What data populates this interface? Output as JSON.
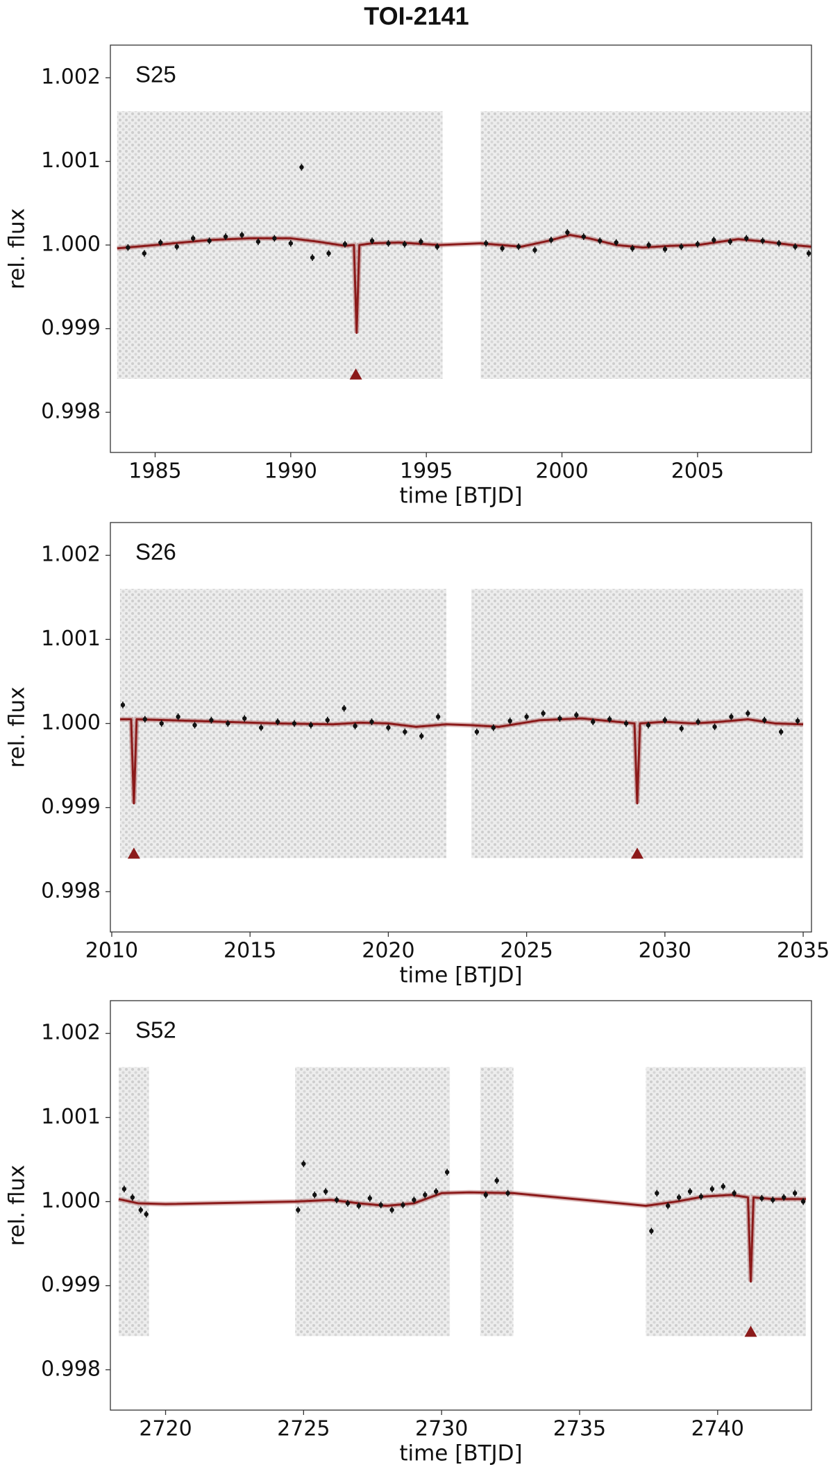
{
  "title": "TOI-2141",
  "chart_data": [
    {
      "type": "scatter",
      "label": "S25",
      "xlabel": "time [BTJD]",
      "ylabel": "rel. flux",
      "xlim": [
        1983.35,
        2009.2
      ],
      "xticks": [
        1985,
        1990,
        1995,
        2000,
        2005
      ],
      "ylim": [
        0.99752,
        1.00239
      ],
      "yticks": [
        0.998,
        0.999,
        {
          "value": 1,
          "label": "1.000"
        },
        1.001,
        1.002
      ],
      "raw_segments": [
        [
          1983.6,
          1995.6
        ],
        [
          1997.0,
          2009.2
        ]
      ],
      "raw_range": [
        0.9984,
        1.0016
      ],
      "raw_color": "#d4d4d4",
      "binned": {
        "color": "#111111",
        "error": 4e-05,
        "x": [
          1984,
          1984.6,
          1985.2,
          1985.8,
          1986.4,
          1987,
          1987.6,
          1988.2,
          1988.8,
          1989.4,
          1990,
          1990.4,
          1990.8,
          1991.4,
          1992,
          1993,
          1993.6,
          1994.2,
          1994.8,
          1995.4,
          1997.2,
          1997.8,
          1998.4,
          1999,
          1999.6,
          2000.2,
          2000.8,
          2001.4,
          2002,
          2002.6,
          2003.2,
          2003.8,
          2004.4,
          2005,
          2005.6,
          2006.2,
          2006.8,
          2007.4,
          2008,
          2008.6,
          2009.1
        ],
        "values": [
          0.99997,
          0.9999,
          1.00003,
          0.99998,
          1.00008,
          1.00005,
          1.0001,
          1.00012,
          1.00004,
          1.00008,
          1.00002,
          1.00093,
          0.99985,
          0.9999,
          1.00001,
          1.00005,
          1.00002,
          1.00001,
          1.00004,
          0.99998,
          1.00002,
          0.99996,
          0.99998,
          0.99994,
          1.00006,
          1.00015,
          1.0001,
          1.00005,
          1.00003,
          0.99996,
          1,
          0.99995,
          0.99998,
          1.00001,
          1.00006,
          1.00004,
          1.00008,
          1.00005,
          1.00002,
          0.99998,
          0.9999
        ]
      },
      "model": {
        "color": "#8b1a1a",
        "x": [
          1983.6,
          1985,
          1987,
          1988.5,
          1990,
          1991,
          1992,
          1992.33,
          1992.43,
          1992.53,
          1993,
          1994,
          1995.5,
          1997,
          1998.5,
          1999.5,
          2000.3,
          2001,
          2002,
          2003,
          2004,
          2005,
          2006.5,
          2007.5,
          2008.5,
          2009.2
        ],
        "values": [
          0.99996,
          1,
          1.00006,
          1.00008,
          1.00008,
          1.00004,
          0.99999,
          1,
          0.99895,
          1,
          1.00002,
          1.00003,
          1,
          1.00002,
          0.99998,
          1.00005,
          1.00012,
          1.00008,
          1,
          0.99997,
          0.99999,
          1,
          1.00007,
          1.00004,
          1,
          0.99998
        ]
      },
      "transits": {
        "color": "#8b1a1a",
        "x": [
          1992.4
        ],
        "values": [
          0.99845
        ]
      }
    },
    {
      "type": "scatter",
      "label": "S26",
      "xlabel": "time [BTJD]",
      "ylabel": "rel. flux",
      "xlim": [
        2009.95,
        2035.3
      ],
      "xticks": [
        2010,
        2015,
        2020,
        2025,
        2030,
        2035
      ],
      "ylim": [
        0.99752,
        1.00239
      ],
      "yticks": [
        0.998,
        0.999,
        {
          "value": 1,
          "label": "1.000"
        },
        1.001,
        1.002
      ],
      "raw_segments": [
        [
          2010.3,
          2022.1
        ],
        [
          2023.0,
          2035.0
        ]
      ],
      "raw_range": [
        0.9984,
        1.0016
      ],
      "raw_color": "#d4d4d4",
      "binned": {
        "color": "#111111",
        "error": 4e-05,
        "x": [
          2010.4,
          2011.2,
          2011.8,
          2012.4,
          2013,
          2013.6,
          2014.2,
          2014.8,
          2015.4,
          2016,
          2016.6,
          2017.2,
          2017.8,
          2018.4,
          2018.8,
          2019.4,
          2020,
          2020.6,
          2021.2,
          2021.8,
          2023.2,
          2023.8,
          2024.4,
          2025,
          2025.6,
          2026.2,
          2026.8,
          2027.4,
          2028,
          2028.6,
          2029.4,
          2030,
          2030.6,
          2031.2,
          2031.8,
          2032.4,
          2033,
          2033.6,
          2034.2,
          2034.8
        ],
        "values": [
          1.00022,
          1.00005,
          1,
          1.00008,
          0.99998,
          1.00004,
          1,
          1.00006,
          0.99995,
          1.00002,
          1,
          0.99998,
          1.00004,
          1.00018,
          0.99997,
          1.00002,
          0.99995,
          0.9999,
          0.99985,
          1.00008,
          0.9999,
          0.99995,
          1.00003,
          1.00008,
          1.00012,
          1.00006,
          1.0001,
          1.00002,
          1.00005,
          1,
          0.99998,
          1.00004,
          0.99994,
          1.00002,
          0.99996,
          1.00008,
          1.00012,
          1.00004,
          0.9999,
          1.00003
        ]
      },
      "model": {
        "color": "#8b1a1a",
        "x": [
          2010.3,
          2010.7,
          2010.8,
          2010.9,
          2012,
          2014,
          2016,
          2018,
          2019,
          2020,
          2021,
          2022.1,
          2023,
          2024,
          2025.5,
          2027,
          2028.9,
          2029.0,
          2029.1,
          2030,
          2031,
          2032,
          2033,
          2034,
          2035
        ],
        "values": [
          1.00005,
          1.00005,
          0.99905,
          1.00005,
          1.00004,
          1.00002,
          1,
          0.99999,
          1.00001,
          1,
          0.99996,
          0.99999,
          0.99998,
          0.99996,
          1.00004,
          1.00006,
          1,
          0.99905,
          1,
          1.00002,
          1,
          1.00002,
          1.00005,
          1,
          0.99999
        ]
      },
      "transits": {
        "color": "#8b1a1a",
        "x": [
          2010.8,
          2029.0
        ],
        "values": [
          0.99845,
          0.99845
        ]
      }
    },
    {
      "type": "scatter",
      "label": "S52",
      "xlabel": "time [BTJD]",
      "ylabel": "rel. flux",
      "xlim": [
        2718.0,
        2743.4
      ],
      "xticks": [
        2720,
        2725,
        2730,
        2735,
        2740
      ],
      "ylim": [
        0.99752,
        1.00239
      ],
      "yticks": [
        0.998,
        0.999,
        {
          "value": 1,
          "label": "1.000"
        },
        1.001,
        1.002
      ],
      "raw_segments": [
        [
          2718.3,
          2719.4
        ],
        [
          2724.7,
          2730.3
        ],
        [
          2731.4,
          2732.6
        ],
        [
          2737.4,
          2743.2
        ]
      ],
      "raw_range": [
        0.9984,
        1.0016
      ],
      "raw_color": "#d4d4d4",
      "binned": {
        "color": "#111111",
        "error": 4e-05,
        "x": [
          2718.5,
          2718.8,
          2719.1,
          2719.3,
          2724.8,
          2725.0,
          2725.4,
          2725.8,
          2726.2,
          2726.6,
          2727,
          2727.4,
          2727.8,
          2728.2,
          2728.6,
          2729,
          2729.4,
          2729.8,
          2730.2,
          2731.6,
          2732,
          2732.4,
          2737.6,
          2737.8,
          2738.2,
          2738.6,
          2739,
          2739.4,
          2739.8,
          2740.2,
          2740.6,
          2741.6,
          2742,
          2742.4,
          2742.8,
          2743.1
        ],
        "values": [
          1.00015,
          1.00005,
          0.9999,
          0.99985,
          0.9999,
          1.00045,
          1.00008,
          1.00012,
          1.00002,
          0.99998,
          0.99995,
          1.00004,
          0.99996,
          0.9999,
          0.99996,
          1.00002,
          1.00008,
          1.00012,
          1.00035,
          1.00008,
          1.00025,
          1.0001,
          0.99965,
          1.0001,
          0.99995,
          1.00005,
          1.00012,
          1.00006,
          1.00015,
          1.00018,
          1.0001,
          1.00004,
          1.00002,
          1.00005,
          1.0001,
          1
        ]
      },
      "model": {
        "color": "#8b1a1a",
        "x": [
          2718.3,
          2719,
          2720,
          2724.7,
          2726,
          2727,
          2728,
          2729,
          2730,
          2731,
          2732.6,
          2737.4,
          2738.5,
          2739.5,
          2740.5,
          2741.1,
          2741.2,
          2741.3,
          2742,
          2743.2
        ],
        "values": [
          1.00003,
          0.99998,
          0.99997,
          1,
          1.00002,
          0.99998,
          0.99995,
          0.99998,
          1.0001,
          1.00011,
          1.0001,
          0.99995,
          1,
          1.00006,
          1.00008,
          1.00005,
          0.99905,
          1.00005,
          1.00003,
          1.00003
        ]
      },
      "transits": {
        "color": "#8b1a1a",
        "x": [
          2741.2
        ],
        "values": [
          0.99845
        ]
      }
    }
  ]
}
